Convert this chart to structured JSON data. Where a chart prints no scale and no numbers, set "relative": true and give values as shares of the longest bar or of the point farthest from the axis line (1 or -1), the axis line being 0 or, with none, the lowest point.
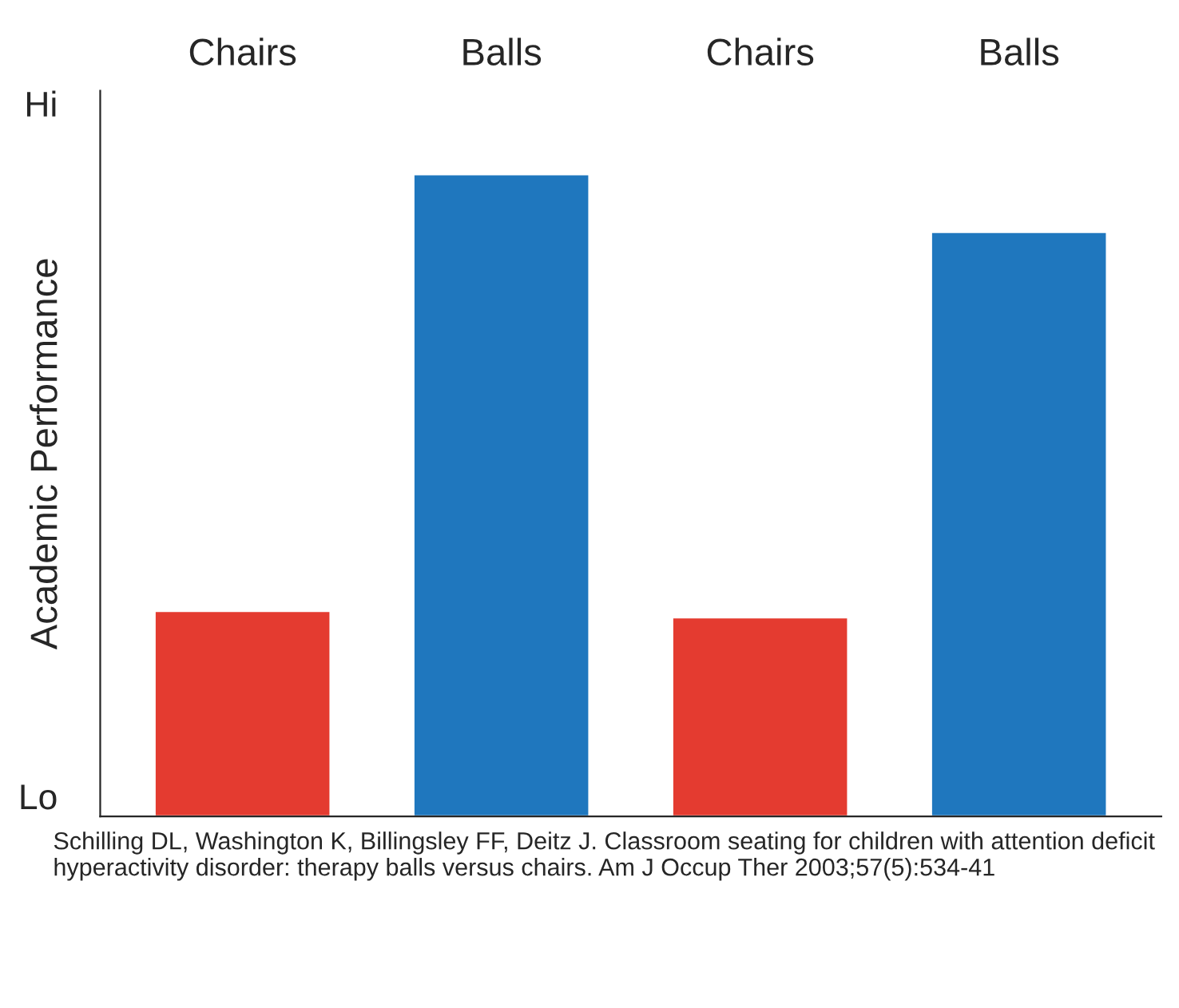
{
  "chart_data": {
    "type": "bar",
    "relative": true,
    "ylabel": "Academic Performance",
    "categories": [
      "Chairs",
      "Balls",
      "Chairs",
      "Balls"
    ],
    "values": [
      0.32,
      1,
      0.31,
      0.91
    ],
    "colors": [
      "#e43b30",
      "#1f77be",
      "#e43b30",
      "#1f77be"
    ],
    "annotations": [
      "Hi",
      "Lo",
      "Schilling DL, Washington K, Billingsley FF, Deitz J. Classroom seating for children with attention deficit hyperactivity disorder: therapy balls versus chairs. Am J Occup Ther 2003;57(5):534-41"
    ],
    "grid": false,
    "legend": false
  }
}
